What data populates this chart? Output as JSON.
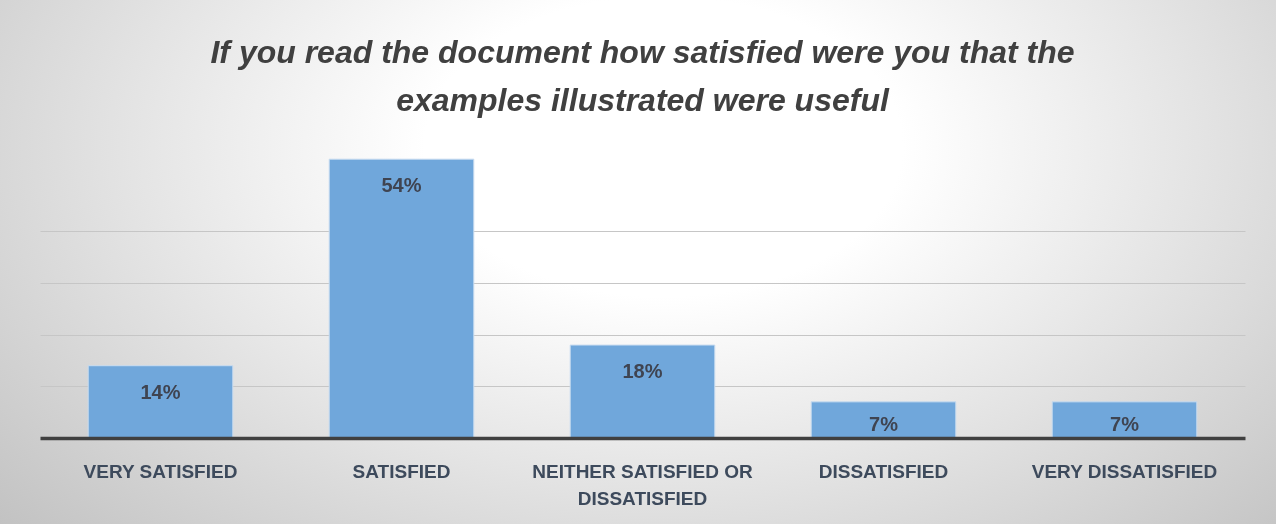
{
  "chart_data": {
    "type": "bar",
    "title": "If you read the document how satisfied were you that the examples illustrated were useful",
    "categories": [
      "VERY SATISFIED",
      "SATISFIED",
      "NEITHER SATISFIED OR DISSATISFIED",
      "DISSATISFIED",
      "VERY DISSATISFIED"
    ],
    "values": [
      14,
      54,
      18,
      7,
      7
    ],
    "value_labels": [
      "14%",
      "54%",
      "18%",
      "7%",
      "7%"
    ],
    "color": "#70a7db",
    "yticks": [
      {
        "value": 10,
        "label": null
      },
      {
        "value": 20,
        "label": null
      },
      {
        "value": 30,
        "label": null
      },
      {
        "value": 40,
        "label": null
      }
    ],
    "grid": "y",
    "tick_labels": "x"
  }
}
